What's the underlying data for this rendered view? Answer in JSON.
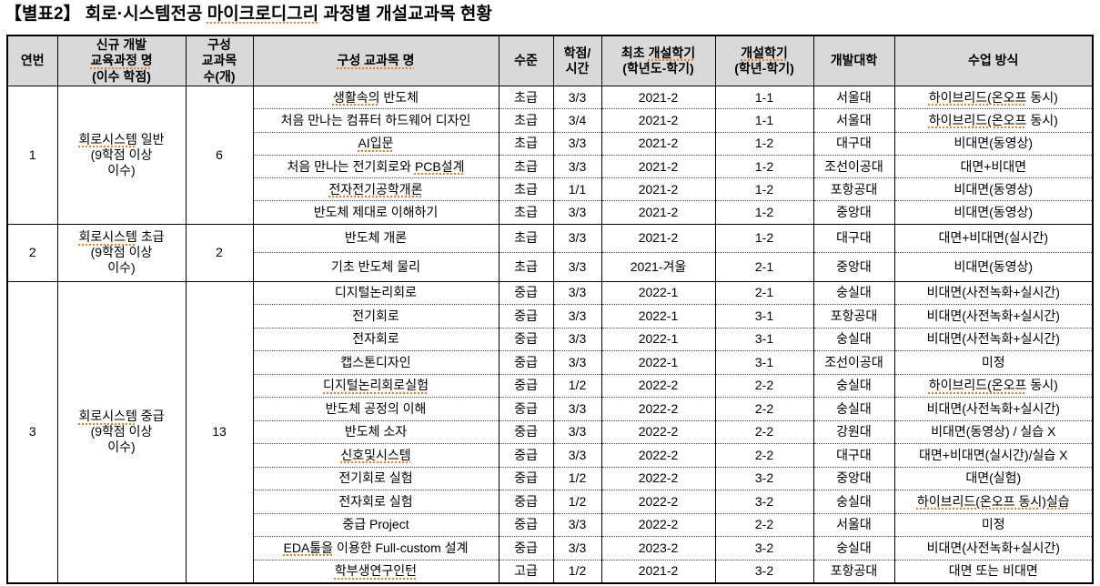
{
  "page": {
    "title": {
      "text": "【별표2】 회로·시스템전공 마이크로디그리 과정별 개설교과목 현황",
      "sq": "마이크로디그리"
    }
  },
  "colors": {
    "header_bg": "#d9d9d9",
    "border": "#000000",
    "squiggle": "#ed7d31",
    "text": "#000000"
  },
  "table": {
    "columns": [
      {
        "id": "no",
        "lines": [
          "연번"
        ]
      },
      {
        "id": "course",
        "lines": [
          "신규 개발",
          "교육과정 명",
          "(이수 학점)"
        ],
        "sq": [
          {
            "line": 1,
            "sub": "교육과정 명"
          }
        ]
      },
      {
        "id": "count",
        "lines": [
          "구성",
          "교과목",
          "수(개)"
        ]
      },
      {
        "id": "name",
        "lines": [
          "구성 교과목 명"
        ],
        "sq": [
          {
            "line": 0,
            "sub": "구성 교과목 명"
          }
        ]
      },
      {
        "id": "level",
        "lines": [
          "수준"
        ]
      },
      {
        "id": "credit",
        "lines": [
          "학점/",
          "시간"
        ]
      },
      {
        "id": "first_term",
        "lines": [
          "최초 개설학기",
          "(학년도-학기)"
        ],
        "sq": [
          {
            "line": 0,
            "sub": "개설학기"
          }
        ]
      },
      {
        "id": "term",
        "lines": [
          "개설학기",
          "(학년-학기)"
        ],
        "sq": [
          {
            "line": 0,
            "sub": "개설학기"
          }
        ]
      },
      {
        "id": "univ",
        "lines": [
          "개발대학"
        ]
      },
      {
        "id": "method",
        "lines": [
          "수업 방식"
        ]
      }
    ],
    "groups": [
      {
        "no": "1",
        "course_lines": [
          "회로시스템 일반",
          "(9학점 이상",
          "이수)"
        ],
        "course_sq": "회로시스템",
        "count": "6",
        "rows": [
          {
            "name": "생활속의 반도체",
            "name_sq": "생활속의",
            "level": "초급",
            "credit": "3/3",
            "first_term": "2021-2",
            "term": "1-1",
            "univ": "서울대",
            "method": "하이브리드(온오프 동시)",
            "method_sq": "하이브리드(온오프"
          },
          {
            "name": "처음 만나는 컴퓨터 하드웨어 디자인",
            "level": "초급",
            "credit": "3/4",
            "first_term": "2021-2",
            "term": "1-1",
            "univ": "서울대",
            "method": "하이브리드(온오프 동시)",
            "method_sq": "하이브리드(온오프"
          },
          {
            "name": "AI입문",
            "name_sq": "AI입문",
            "level": "초급",
            "credit": "3/3",
            "first_term": "2021-2",
            "term": "1-2",
            "univ": "대구대",
            "method": "비대면(동영상)"
          },
          {
            "name": "처음 만나는 전기회로와 PCB설계",
            "name_sq": "PCB설계",
            "level": "초급",
            "credit": "3/3",
            "first_term": "2021-2",
            "term": "1-2",
            "univ": "조선이공대",
            "method": "대면+비대면"
          },
          {
            "name": "전자전기공학개론",
            "name_sq": "전자전기공학개론",
            "level": "초급",
            "credit": "1/1",
            "first_term": "2021-2",
            "term": "1-2",
            "univ": "포항공대",
            "method": "비대면(동영상)"
          },
          {
            "name": "반도체 제대로 이해하기",
            "level": "초급",
            "credit": "3/3",
            "first_term": "2021-2",
            "term": "1-2",
            "univ": "중앙대",
            "method": "비대면(동영상)"
          }
        ]
      },
      {
        "no": "2",
        "course_lines": [
          "회로시스템 초급",
          "(9학점 이상",
          "이수)"
        ],
        "course_sq": "회로시스템",
        "count": "2",
        "rows": [
          {
            "name": "반도체 개론",
            "level": "초급",
            "credit": "3/3",
            "first_term": "2021-2",
            "term": "1-2",
            "univ": "대구대",
            "method": "대면+비대면(실시간)"
          },
          {
            "name": "기초 반도체 물리",
            "level": "초급",
            "credit": "3/3",
            "first_term": "2021-겨울",
            "term": "2-1",
            "univ": "중앙대",
            "method": "비대면(동영상)"
          }
        ]
      },
      {
        "no": "3",
        "course_lines": [
          "회로시스템 중급",
          "(9학점 이상",
          "이수)"
        ],
        "course_sq": "회로시스템",
        "count": "13",
        "rows": [
          {
            "name": "디지털논리회로",
            "level": "중급",
            "credit": "3/3",
            "first_term": "2022-1",
            "term": "2-1",
            "univ": "숭실대",
            "method": "비대면(사전녹화+실시간)"
          },
          {
            "name": "전기회로",
            "level": "중급",
            "credit": "3/3",
            "first_term": "2022-1",
            "term": "3-1",
            "univ": "포항공대",
            "method": "비대면(사전녹화+실시간)"
          },
          {
            "name": "전자회로",
            "level": "중급",
            "credit": "3/3",
            "first_term": "2022-1",
            "term": "3-1",
            "univ": "숭실대",
            "method": "비대면(사전녹화+실시간)"
          },
          {
            "name": "캡스톤디자인",
            "level": "중급",
            "credit": "3/3",
            "first_term": "2022-1",
            "term": "3-1",
            "univ": "조선이공대",
            "method": "미정"
          },
          {
            "name": "디지털논리회로실험",
            "name_sq": "디지털논리회로실험",
            "level": "중급",
            "credit": "1/2",
            "first_term": "2022-2",
            "term": "2-2",
            "univ": "숭실대",
            "method": "하이브리드(온오프 동시)",
            "method_sq": "하이브리드(온오프"
          },
          {
            "name": "반도체 공정의 이해",
            "level": "중급",
            "credit": "3/3",
            "first_term": "2022-2",
            "term": "2-2",
            "univ": "숭실대",
            "method": "비대면(사전녹화+실시간)"
          },
          {
            "name": "반도체 소자",
            "level": "중급",
            "credit": "3/3",
            "first_term": "2022-2",
            "term": "2-2",
            "univ": "강원대",
            "method": "비대면(동영상) / 실습 X"
          },
          {
            "name": "신호및시스템",
            "name_sq": "신호및시스템",
            "level": "중급",
            "credit": "3/3",
            "first_term": "2022-2",
            "term": "2-2",
            "univ": "대구대",
            "method": "대면+비대면(실시간)/실습 X"
          },
          {
            "name": "전기회로 실험",
            "level": "중급",
            "credit": "1/2",
            "first_term": "2022-2",
            "term": "3-2",
            "univ": "중앙대",
            "method": "대면(실험)"
          },
          {
            "name": "전자회로 실험",
            "level": "중급",
            "credit": "1/2",
            "first_term": "2022-2",
            "term": "3-2",
            "univ": "숭실대",
            "method": "하이브리드(온오프 동시)실습",
            "method_sq": "하이브리드(온오프 동시)실습"
          },
          {
            "name": "중급 Project",
            "level": "중급",
            "credit": "3/3",
            "first_term": "2022-2",
            "term": "2-2",
            "univ": "서울대",
            "method": "미정"
          },
          {
            "name": "EDA툴을 이용한 Full-custom 설계",
            "name_sq": "EDA툴을",
            "level": "중급",
            "credit": "3/3",
            "first_term": "2023-2",
            "term": "3-2",
            "univ": "숭실대",
            "method": "비대면(사전녹화+실시간)"
          },
          {
            "name": "학부생연구인턴",
            "name_sq": "학부생연구인턴",
            "level": "고급",
            "credit": "1/2",
            "first_term": "2021-2",
            "term": "3-2",
            "univ": "포항공대",
            "method": "대면 또는 비대면"
          }
        ]
      }
    ]
  }
}
